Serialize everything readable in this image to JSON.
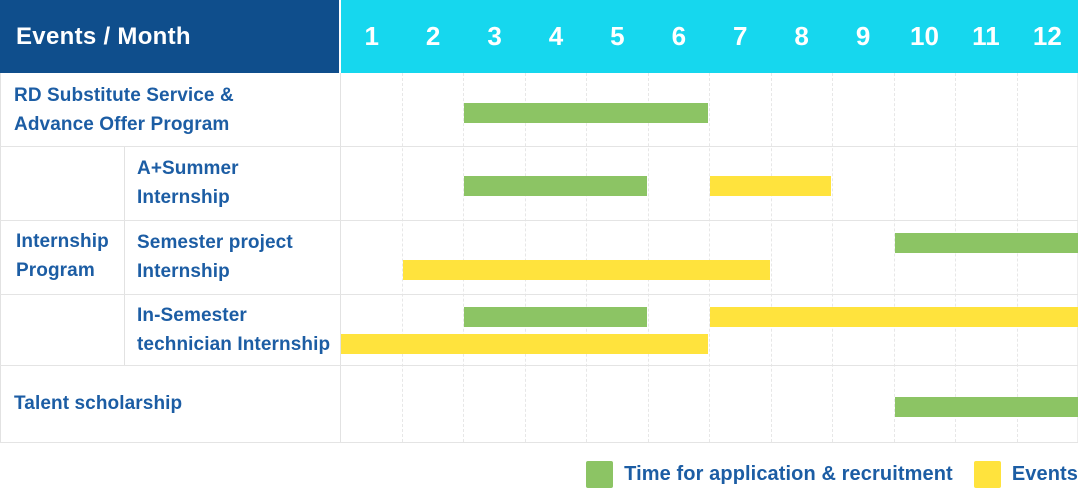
{
  "chart_data": {
    "type": "gantt",
    "title": "Events / Month",
    "x_axis": {
      "unit": "month",
      "ticks": [
        "1",
        "2",
        "3",
        "4",
        "5",
        "6",
        "7",
        "8",
        "9",
        "10",
        "11",
        "12"
      ],
      "range": [
        1,
        12
      ]
    },
    "legend": [
      {
        "series": "recruitment",
        "label": "Time for application & recruitment"
      },
      {
        "series": "events",
        "label": "Events"
      }
    ],
    "group_label_lines": [
      "Internship",
      "Program"
    ],
    "rows": [
      {
        "group": "",
        "label_lines": [
          "RD Substitute Service &",
          "Advance Offer Program"
        ],
        "bars": [
          {
            "series": "recruitment",
            "from_month": 3,
            "to_month": 6,
            "track": "single"
          }
        ]
      },
      {
        "group": "Internship Program",
        "label_lines": [
          "A+Summer",
          "Internship"
        ],
        "bars": [
          {
            "series": "recruitment",
            "from_month": 3,
            "to_month": 5,
            "track": "single"
          },
          {
            "series": "events",
            "from_month": 7,
            "to_month": 8,
            "track": "single"
          }
        ]
      },
      {
        "group": "Internship Program",
        "label_lines": [
          "Semester project",
          "Internship"
        ],
        "bars": [
          {
            "series": "recruitment",
            "from_month": 10,
            "to_month": 12,
            "track": "top"
          },
          {
            "series": "events",
            "from_month": 2,
            "to_month": 7,
            "track": "bottom"
          }
        ]
      },
      {
        "group": "Internship Program",
        "label_lines": [
          "In-Semester",
          "technician Internship"
        ],
        "bars": [
          {
            "series": "recruitment",
            "from_month": 3,
            "to_month": 5,
            "track": "top"
          },
          {
            "series": "events",
            "from_month": 7,
            "to_month": 12,
            "track": "top"
          },
          {
            "series": "events",
            "from_month": 1,
            "to_month": 6,
            "track": "bottom"
          }
        ]
      },
      {
        "group": "",
        "label_lines": [
          "Talent scholarship"
        ],
        "bars": [
          {
            "series": "recruitment",
            "from_month": 10,
            "to_month": 12,
            "track": "single"
          }
        ]
      }
    ]
  },
  "colors": {
    "header_bg": "#0f4e8c",
    "months_bg": "#16d7ee",
    "recruitment": "#8cc464",
    "events": "#ffe33d",
    "header_text": "#ffffff",
    "label_text": "#1c5da4",
    "grid_line": "#e4e4e4"
  }
}
